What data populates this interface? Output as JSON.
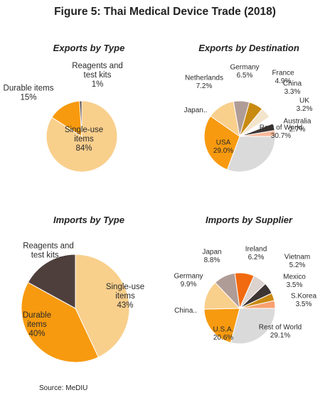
{
  "title": "Figure 5: Thai Medical Device Trade (2018)",
  "source": "Source: MeDIU",
  "chart_data": [
    {
      "type": "pie",
      "title": "Exports by Type",
      "slices": [
        {
          "name": "Single-use items",
          "value": 84,
          "label": "84%",
          "color": "#f9cf8c"
        },
        {
          "name": "Durable items",
          "value": 15,
          "label": "15%",
          "color": "#f79a0f"
        },
        {
          "name": "Reagents and test kits",
          "value": 1,
          "label": "1%",
          "color": "#4f3f3c"
        }
      ]
    },
    {
      "type": "pie",
      "title": "Exports by Destination",
      "slices": [
        {
          "name": "Rest of World",
          "value": 30.7,
          "label": "30.7%",
          "color": "#dadada"
        },
        {
          "name": "USA",
          "value": 29.0,
          "label": "29.0%",
          "color": "#f79a0f"
        },
        {
          "name": "Japan..",
          "value": 12.5,
          "label": "",
          "color": "#f9cf8c"
        },
        {
          "name": "Netherlands",
          "value": 7.2,
          "label": "7.2%",
          "color": "#b09c96"
        },
        {
          "name": "Germany",
          "value": 6.5,
          "label": "6.5%",
          "color": "#c98a12"
        },
        {
          "name": "France",
          "value": 4.9,
          "label": "4.9%",
          "color": "#f3e4cc"
        },
        {
          "name": "China",
          "value": 3.3,
          "label": "3.3%",
          "color": "#ffffff"
        },
        {
          "name": "UK",
          "value": 3.2,
          "label": "3.2%",
          "color": "#3d3534"
        },
        {
          "name": "Australia",
          "value": 2.7,
          "label": "2.7%",
          "color": "#f8b99b"
        }
      ]
    },
    {
      "type": "pie",
      "title": "Imports by Type",
      "slices": [
        {
          "name": "Single-use items",
          "value": 43,
          "label": "43%",
          "color": "#f9cf8c"
        },
        {
          "name": "Durable items",
          "value": 40,
          "label": "40%",
          "color": "#f79a0f"
        },
        {
          "name": "Reagents and test kits...",
          "value": 17,
          "label": "",
          "color": "#4f3f3c"
        }
      ]
    },
    {
      "type": "pie",
      "title": "Imports by Supplier",
      "slices": [
        {
          "name": "Rest of World",
          "value": 29.1,
          "label": "29.1%",
          "color": "#dadada"
        },
        {
          "name": "U.S.A.",
          "value": 20.6,
          "label": "20.6%",
          "color": "#f79a0f"
        },
        {
          "name": "China..",
          "value": 13.3,
          "label": "",
          "color": "#f9cf8c"
        },
        {
          "name": "Germany",
          "value": 9.9,
          "label": "9.9%",
          "color": "#b09c96"
        },
        {
          "name": "Japan",
          "value": 8.8,
          "label": "8.8%",
          "color": "#f26a10"
        },
        {
          "name": "Ireland",
          "value": 6.2,
          "label": "6.2%",
          "color": "#dcd2ce"
        },
        {
          "name": "Vietnam",
          "value": 5.2,
          "label": "5.2%",
          "color": "#3d3534"
        },
        {
          "name": "Mexico",
          "value": 3.5,
          "label": "3.5%",
          "color": "#c98a12"
        },
        {
          "name": "S.Korea",
          "value": 3.5,
          "label": "3.5%",
          "color": "#f8a070"
        }
      ]
    }
  ]
}
